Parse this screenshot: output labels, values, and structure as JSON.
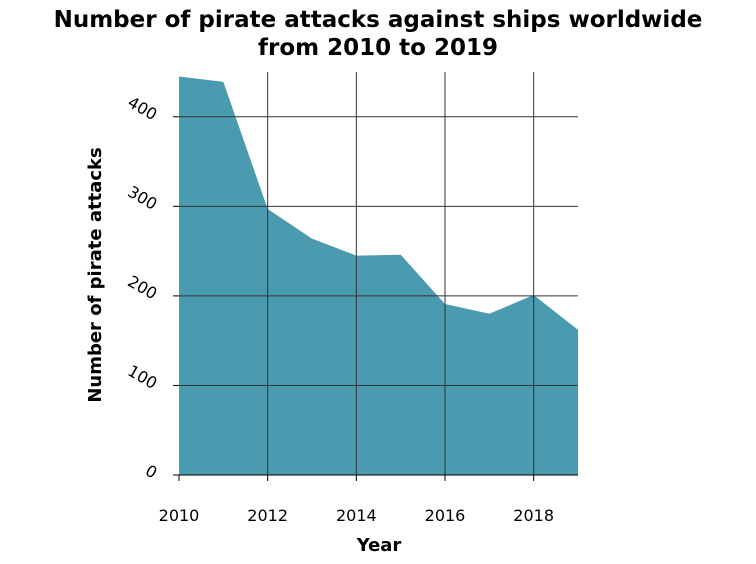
{
  "chart_data": {
    "type": "area",
    "title_lines": [
      "Number of pirate attacks against ships worldwide",
      "from 2010 to 2019"
    ],
    "xlabel": "Year",
    "ylabel": "Number of pirate attacks",
    "x": [
      2010,
      2011,
      2012,
      2013,
      2014,
      2015,
      2016,
      2017,
      2018,
      2019
    ],
    "series": [
      {
        "values": [
          445,
          439,
          297,
          264,
          245,
          246,
          191,
          180,
          201,
          162
        ]
      }
    ],
    "xlim": [
      2010,
      2019
    ],
    "ylim": [
      0,
      450
    ],
    "xticks": [
      2010,
      2012,
      2014,
      2016,
      2018
    ],
    "yticks": [
      0,
      100,
      200,
      300,
      400
    ],
    "grid": true,
    "area_color": "#4a9ab0",
    "grid_color": "#333333"
  }
}
